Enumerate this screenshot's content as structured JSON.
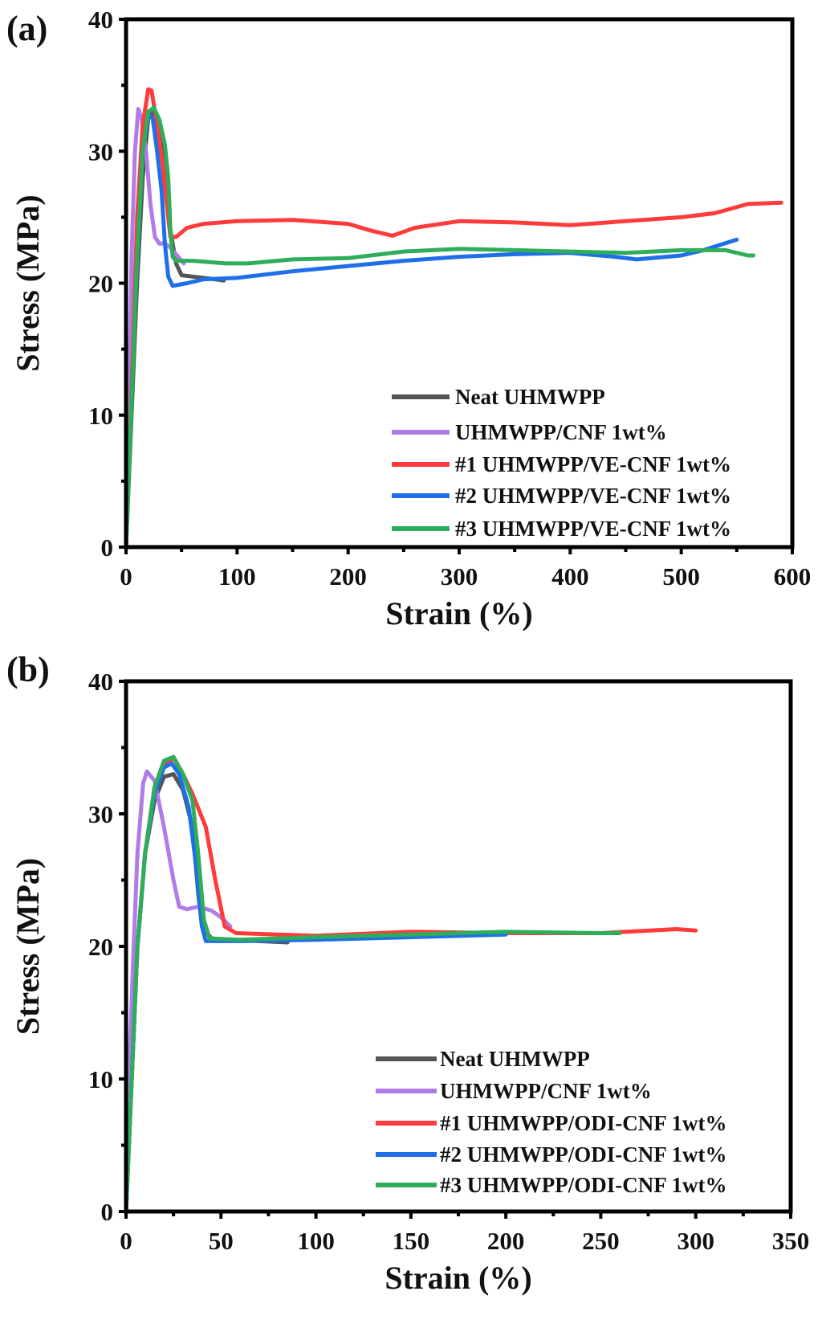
{
  "chart_data": [
    {
      "type": "line",
      "panel_label": "(a)",
      "xlabel": "Strain (%)",
      "ylabel": "Stress (MPa)",
      "xlim": [
        0,
        600
      ],
      "ylim": [
        0,
        40
      ],
      "xticks": [
        0,
        100,
        200,
        300,
        400,
        500,
        600
      ],
      "yticks": [
        0,
        10,
        20,
        30,
        40
      ],
      "grid": false,
      "legend_position": "bottom-right",
      "series": [
        {
          "name": "Neat UHMWPP",
          "color": "#555555",
          "points": [
            [
              0,
              0
            ],
            [
              5,
              10
            ],
            [
              10,
              20
            ],
            [
              15,
              28
            ],
            [
              20,
              32.5
            ],
            [
              25,
              33
            ],
            [
              30,
              32
            ],
            [
              35,
              29
            ],
            [
              40,
              24
            ],
            [
              45,
              21.5
            ],
            [
              50,
              20.6
            ],
            [
              60,
              20.5
            ],
            [
              70,
              20.4
            ],
            [
              80,
              20.3
            ],
            [
              88,
              20.2
            ]
          ]
        },
        {
          "name": "UHMWPP/CNF 1wt%",
          "color": "#b07ce8",
          "points": [
            [
              0,
              0
            ],
            [
              3,
              12
            ],
            [
              5,
              22
            ],
            [
              8,
              30
            ],
            [
              11,
              33.2
            ],
            [
              14,
              32.5
            ],
            [
              18,
              30
            ],
            [
              22,
              26
            ],
            [
              26,
              23.5
            ],
            [
              30,
              23
            ],
            [
              35,
              23
            ],
            [
              40,
              22.7
            ],
            [
              47,
              22
            ],
            [
              52,
              21.5
            ]
          ]
        },
        {
          "name": "#1 UHMWPP/VE-CNF 1wt%",
          "color": "#ff3b3b",
          "points": [
            [
              0,
              0
            ],
            [
              5,
              12
            ],
            [
              10,
              25
            ],
            [
              15,
              32
            ],
            [
              20,
              34.7
            ],
            [
              23,
              34.6
            ],
            [
              28,
              32
            ],
            [
              33,
              29
            ],
            [
              38,
              25
            ],
            [
              40,
              23.5
            ],
            [
              45,
              23.5
            ],
            [
              55,
              24.2
            ],
            [
              70,
              24.5
            ],
            [
              100,
              24.7
            ],
            [
              150,
              24.8
            ],
            [
              200,
              24.5
            ],
            [
              220,
              24
            ],
            [
              240,
              23.6
            ],
            [
              260,
              24.2
            ],
            [
              300,
              24.7
            ],
            [
              350,
              24.6
            ],
            [
              400,
              24.4
            ],
            [
              450,
              24.7
            ],
            [
              500,
              25
            ],
            [
              530,
              25.3
            ],
            [
              560,
              26
            ],
            [
              590,
              26.1
            ]
          ]
        },
        {
          "name": "#2 UHMWPP/VE-CNF 1wt%",
          "color": "#1e6fe8",
          "points": [
            [
              0,
              0
            ],
            [
              5,
              11
            ],
            [
              10,
              22
            ],
            [
              15,
              30
            ],
            [
              20,
              32.8
            ],
            [
              24,
              32.5
            ],
            [
              28,
              30
            ],
            [
              32,
              27
            ],
            [
              35,
              23
            ],
            [
              38,
              20.5
            ],
            [
              42,
              19.8
            ],
            [
              55,
              20
            ],
            [
              70,
              20.3
            ],
            [
              100,
              20.4
            ],
            [
              150,
              20.9
            ],
            [
              200,
              21.3
            ],
            [
              250,
              21.7
            ],
            [
              300,
              22
            ],
            [
              350,
              22.2
            ],
            [
              400,
              22.3
            ],
            [
              440,
              22
            ],
            [
              460,
              21.8
            ],
            [
              500,
              22.1
            ],
            [
              520,
              22.5
            ],
            [
              550,
              23.3
            ]
          ]
        },
        {
          "name": "#3 UHMWPP/VE-CNF 1wt%",
          "color": "#2eae5a",
          "points": [
            [
              0,
              0
            ],
            [
              5,
              11
            ],
            [
              10,
              22
            ],
            [
              15,
              30
            ],
            [
              20,
              33
            ],
            [
              25,
              33.3
            ],
            [
              30,
              32.4
            ],
            [
              35,
              30.5
            ],
            [
              38,
              28
            ],
            [
              40,
              24
            ],
            [
              42,
              22
            ],
            [
              45,
              21.7
            ],
            [
              60,
              21.7
            ],
            [
              90,
              21.5
            ],
            [
              110,
              21.5
            ],
            [
              150,
              21.8
            ],
            [
              200,
              21.9
            ],
            [
              250,
              22.4
            ],
            [
              300,
              22.6
            ],
            [
              350,
              22.5
            ],
            [
              400,
              22.4
            ],
            [
              450,
              22.3
            ],
            [
              500,
              22.5
            ],
            [
              540,
              22.5
            ],
            [
              560,
              22.1
            ],
            [
              565,
              22.1
            ]
          ]
        }
      ]
    },
    {
      "type": "line",
      "panel_label": "(b)",
      "xlabel": "Strain (%)",
      "ylabel": "Stress (MPa)",
      "xlim": [
        0,
        350
      ],
      "ylim": [
        0,
        40
      ],
      "xticks": [
        0,
        50,
        100,
        150,
        200,
        250,
        300,
        350
      ],
      "yticks": [
        0,
        10,
        20,
        30,
        40
      ],
      "grid": false,
      "legend_position": "bottom-right",
      "series": [
        {
          "name": "Neat UHMWPP",
          "color": "#555555",
          "points": [
            [
              0,
              0
            ],
            [
              3,
              10
            ],
            [
              6,
              20
            ],
            [
              10,
              27
            ],
            [
              15,
              31
            ],
            [
              20,
              32.8
            ],
            [
              25,
              33
            ],
            [
              30,
              31.8
            ],
            [
              35,
              29
            ],
            [
              38,
              24
            ],
            [
              40,
              21.5
            ],
            [
              45,
              20.6
            ],
            [
              55,
              20.5
            ],
            [
              70,
              20.4
            ],
            [
              85,
              20.3
            ]
          ]
        },
        {
          "name": "UHMWPP/CNF 1wt%",
          "color": "#b07ce8",
          "points": [
            [
              0,
              0
            ],
            [
              2,
              12
            ],
            [
              4,
              20
            ],
            [
              6,
              27
            ],
            [
              9,
              32.3
            ],
            [
              11,
              33.2
            ],
            [
              15,
              32.5
            ],
            [
              20,
              29
            ],
            [
              25,
              25
            ],
            [
              28,
              23
            ],
            [
              32,
              22.8
            ],
            [
              38,
              23
            ],
            [
              45,
              22.7
            ],
            [
              50,
              22.2
            ],
            [
              55,
              21.5
            ]
          ]
        },
        {
          "name": "#1 UHMWPP/ODI-CNF 1wt%",
          "color": "#ff3b3b",
          "points": [
            [
              0,
              0
            ],
            [
              3,
              10
            ],
            [
              6,
              20
            ],
            [
              10,
              27
            ],
            [
              15,
              32
            ],
            [
              20,
              33.8
            ],
            [
              25,
              34.2
            ],
            [
              30,
              33
            ],
            [
              35,
              31.5
            ],
            [
              42,
              29
            ],
            [
              47,
              25
            ],
            [
              52,
              21.5
            ],
            [
              58,
              21
            ],
            [
              80,
              20.9
            ],
            [
              100,
              20.8
            ],
            [
              150,
              21.1
            ],
            [
              200,
              21
            ],
            [
              250,
              21
            ],
            [
              290,
              21.3
            ],
            [
              300,
              21.2
            ]
          ]
        },
        {
          "name": "#2 UHMWPP/ODI-CNF 1wt%",
          "color": "#1e6fe8",
          "points": [
            [
              0,
              0
            ],
            [
              3,
              10
            ],
            [
              6,
              20
            ],
            [
              10,
              27
            ],
            [
              15,
              31.5
            ],
            [
              20,
              33.5
            ],
            [
              24,
              33.8
            ],
            [
              28,
              33
            ],
            [
              33,
              30.5
            ],
            [
              37,
              26
            ],
            [
              40,
              21.5
            ],
            [
              42,
              20.4
            ],
            [
              60,
              20.4
            ],
            [
              100,
              20.5
            ],
            [
              150,
              20.7
            ],
            [
              200,
              20.9
            ]
          ]
        },
        {
          "name": "#3 UHMWPP/ODI-CNF 1wt%",
          "color": "#2eae5a",
          "points": [
            [
              0,
              0
            ],
            [
              3,
              10
            ],
            [
              6,
              20
            ],
            [
              10,
              27
            ],
            [
              15,
              32
            ],
            [
              20,
              34
            ],
            [
              25,
              34.3
            ],
            [
              30,
              33
            ],
            [
              35,
              31
            ],
            [
              38,
              27
            ],
            [
              41,
              22
            ],
            [
              44,
              20.6
            ],
            [
              60,
              20.5
            ],
            [
              100,
              20.7
            ],
            [
              150,
              20.9
            ],
            [
              200,
              21.1
            ],
            [
              250,
              21
            ],
            [
              260,
              21
            ]
          ]
        }
      ]
    }
  ]
}
